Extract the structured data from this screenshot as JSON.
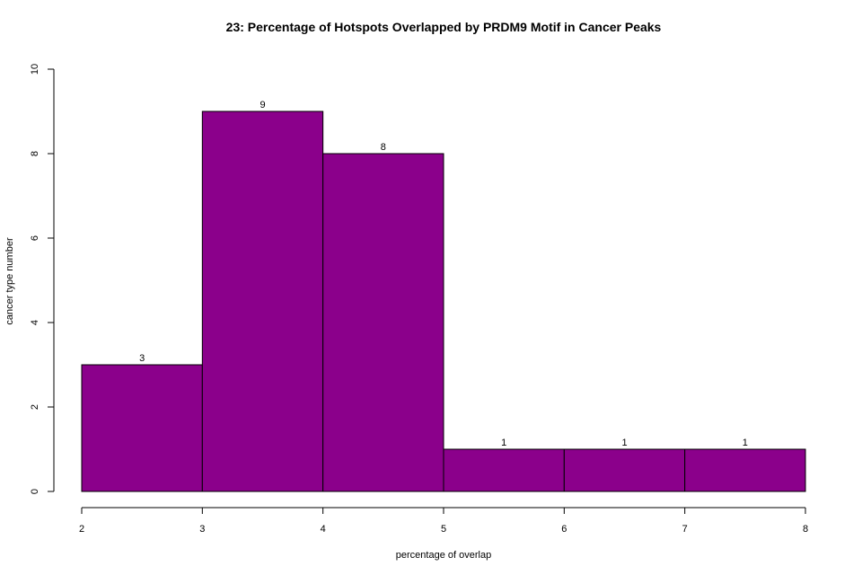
{
  "chart_data": {
    "type": "bar",
    "title": "23: Percentage of Hotspots Overlapped by PRDM9 Motif in Cancer Peaks",
    "xlabel": "percentage of overlap",
    "ylabel": "cancer type number",
    "bins": [
      [
        2,
        3
      ],
      [
        3,
        4
      ],
      [
        4,
        5
      ],
      [
        5,
        6
      ],
      [
        6,
        7
      ],
      [
        7,
        8
      ]
    ],
    "values": [
      3,
      9,
      8,
      1,
      1,
      1
    ],
    "bar_labels": [
      "3",
      "9",
      "8",
      "1",
      "1",
      "1"
    ],
    "x_ticks": [
      2,
      3,
      4,
      5,
      6,
      7,
      8
    ],
    "x_tick_labels": [
      "2",
      "3",
      "4",
      "5",
      "6",
      "7",
      "8"
    ],
    "y_ticks": [
      0,
      2,
      4,
      6,
      8,
      10
    ],
    "y_tick_labels": [
      "0",
      "2",
      "4",
      "6",
      "8",
      "10"
    ],
    "xlim": [
      2,
      8
    ],
    "ylim": [
      0,
      10
    ],
    "bar_color": "#8B008B",
    "grid": false
  }
}
